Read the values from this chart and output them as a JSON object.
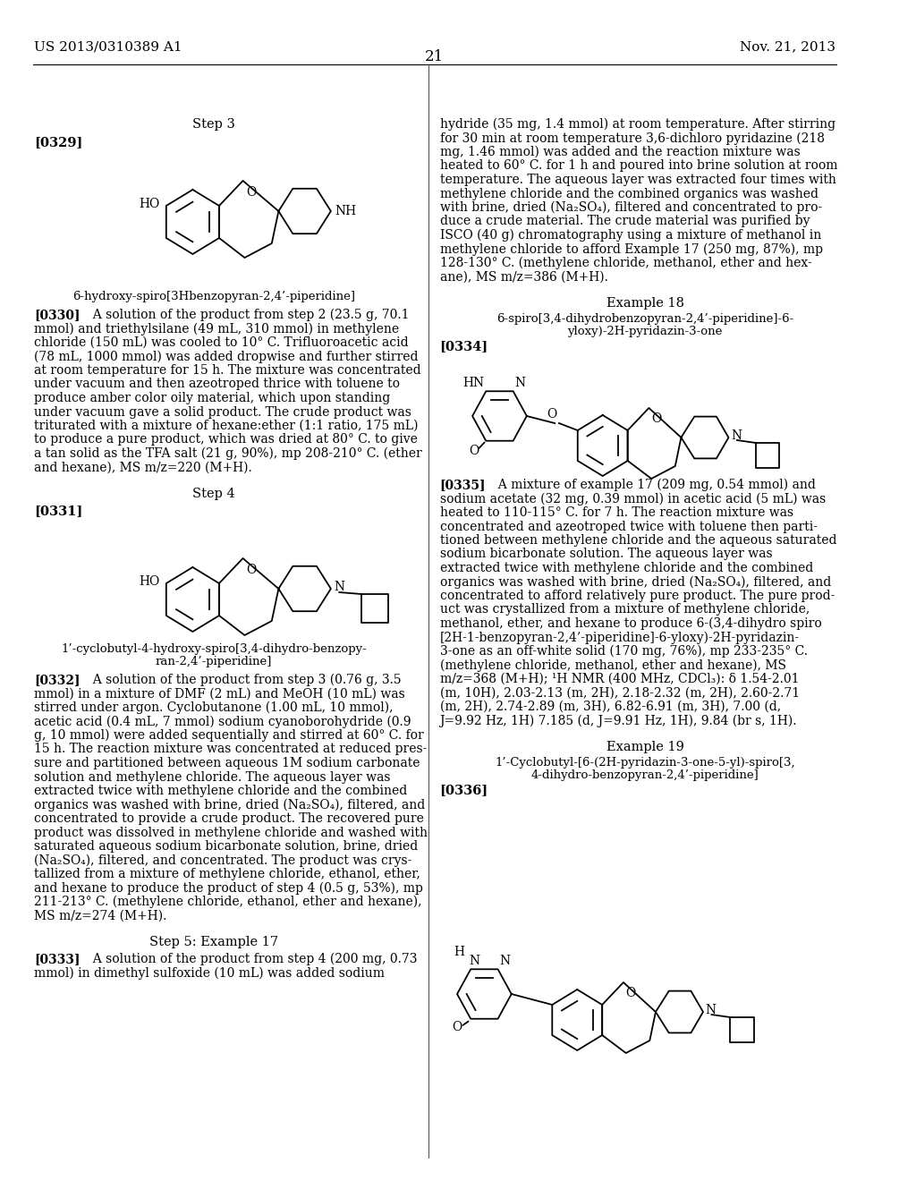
{
  "bg": "#ffffff",
  "header_left": "US 2013/0310389 A1",
  "header_right": "Nov. 21, 2013",
  "page_num": "21"
}
